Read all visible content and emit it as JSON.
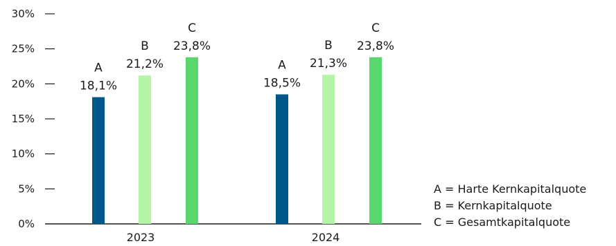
{
  "chart_data": {
    "type": "bar",
    "categories": [
      "2023",
      "2024"
    ],
    "series": [
      {
        "name": "A",
        "values": [
          18.1,
          18.5
        ],
        "labels": [
          "18,1%",
          "18,5%"
        ],
        "color": "#00578a"
      },
      {
        "name": "B",
        "values": [
          21.2,
          21.3
        ],
        "labels": [
          "21,2%",
          "21,3%"
        ],
        "color": "#b5f5a8"
      },
      {
        "name": "C",
        "values": [
          23.8,
          23.8
        ],
        "labels": [
          "23,8%",
          "23,8%"
        ],
        "color": "#5ad66f"
      }
    ],
    "yticks": [
      0,
      5,
      10,
      15,
      20,
      25,
      30
    ],
    "ytick_labels": [
      "0%",
      "5%",
      "10%",
      "15%",
      "20%",
      "25%",
      "30%"
    ],
    "ylim": [
      0,
      30
    ],
    "grid": false,
    "xlabel": "",
    "ylabel": ""
  },
  "legend": [
    "A = Harte Kernkapitalquote",
    "B = Kernkapitalquote",
    "C = Gesamtkapitalquote"
  ]
}
